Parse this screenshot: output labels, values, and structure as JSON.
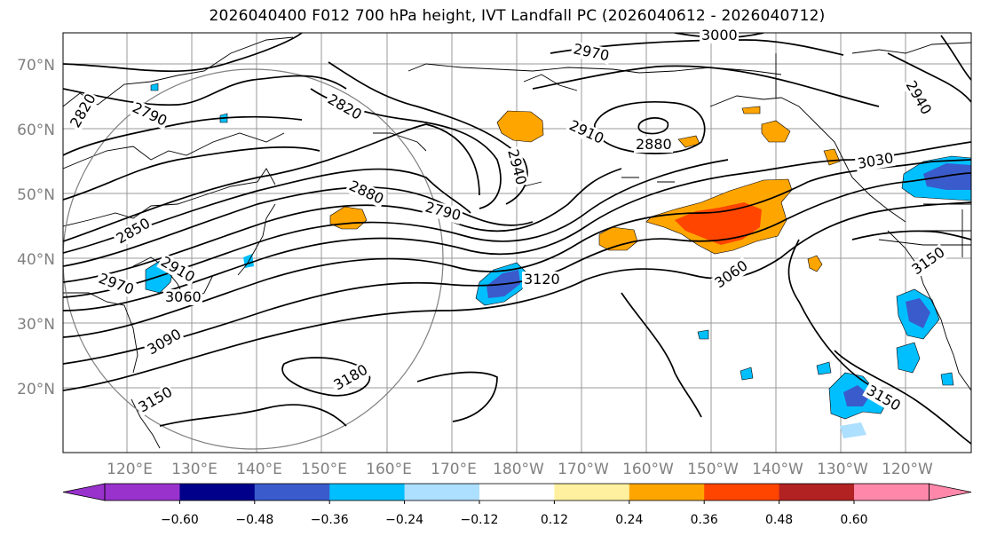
{
  "title": "2026040400 F012 700 hPa height, IVT Landfall PC (2026040612 - 2026040712)",
  "map": {
    "lat_ticks": [
      "70°N",
      "60°N",
      "50°N",
      "40°N",
      "30°N",
      "20°N"
    ],
    "lon_ticks": [
      "120°E",
      "130°E",
      "140°E",
      "150°E",
      "160°E",
      "170°E",
      "180°W",
      "170°W",
      "160°W",
      "150°W",
      "140°W",
      "130°W",
      "120°W"
    ],
    "contour_labels": [
      "2820",
      "2790",
      "2820",
      "2970",
      "3000",
      "2940",
      "2910",
      "2880",
      "2940",
      "3030",
      "2880",
      "2790",
      "2850",
      "2910",
      "2970",
      "3060",
      "3120",
      "3060",
      "3150",
      "3090",
      "3180",
      "3150",
      "3150"
    ],
    "colors": {
      "land_coast": "#000000",
      "grid": "#999999",
      "tick_label": "#808080"
    }
  },
  "colorbar": {
    "colors": [
      "#9932CC",
      "#00008B",
      "#3A5BCB",
      "#00BFFF",
      "#ADDFFF",
      "#FFFFFF",
      "#FFF0A0",
      "#FFA500",
      "#FF4500",
      "#B22222",
      "#FF88AA"
    ],
    "ticks": [
      "−0.60",
      "−0.48",
      "−0.36",
      "−0.24",
      "−0.12",
      "0.12",
      "0.24",
      "0.36",
      "0.48",
      "0.60"
    ]
  }
}
